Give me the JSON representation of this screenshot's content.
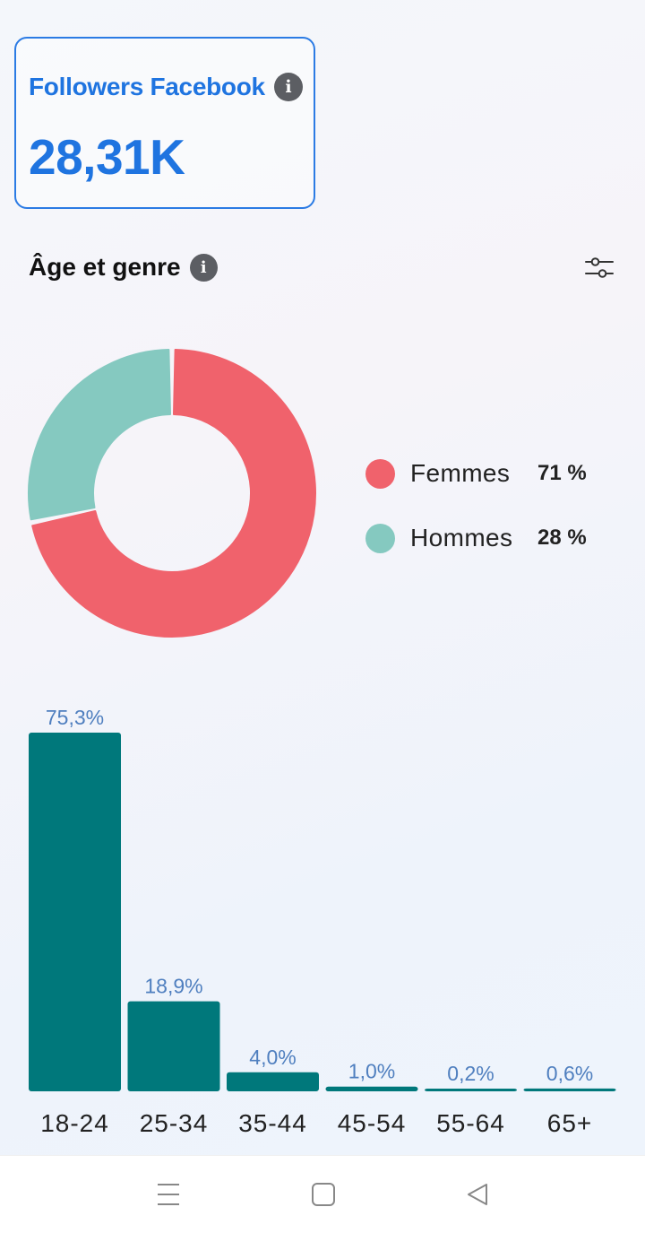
{
  "followers_card": {
    "title": "Followers Facebook",
    "value": "28,31K",
    "accent_color": "#1f74e0",
    "info_icon": "info-icon"
  },
  "section": {
    "title": "Âge et genre",
    "info_icon": "info-icon",
    "filter_icon": "sliders-icon"
  },
  "chart_data": [
    {
      "type": "pie",
      "style": "donut",
      "categories": [
        "Femmes",
        "Hommes"
      ],
      "values": [
        71,
        28
      ],
      "value_labels": [
        "71 %",
        "28 %"
      ],
      "colors": [
        "#f0626c",
        "#85c9c0"
      ],
      "legend_position": "right"
    },
    {
      "type": "bar",
      "categories": [
        "18-24",
        "25-34",
        "35-44",
        "45-54",
        "55-64",
        "65+"
      ],
      "values": [
        75.3,
        18.9,
        4.0,
        1.0,
        0.2,
        0.6
      ],
      "value_labels": [
        "75,3%",
        "18,9%",
        "4,0%",
        "1,0%",
        "0,2%",
        "0,6%"
      ],
      "bar_color": "#00787b",
      "label_color": "#4f7fbf",
      "ylim": [
        0,
        75.3
      ],
      "grid": false
    }
  ],
  "navbar": {
    "items": [
      "menu-icon",
      "home-square-icon",
      "back-triangle-icon"
    ]
  }
}
